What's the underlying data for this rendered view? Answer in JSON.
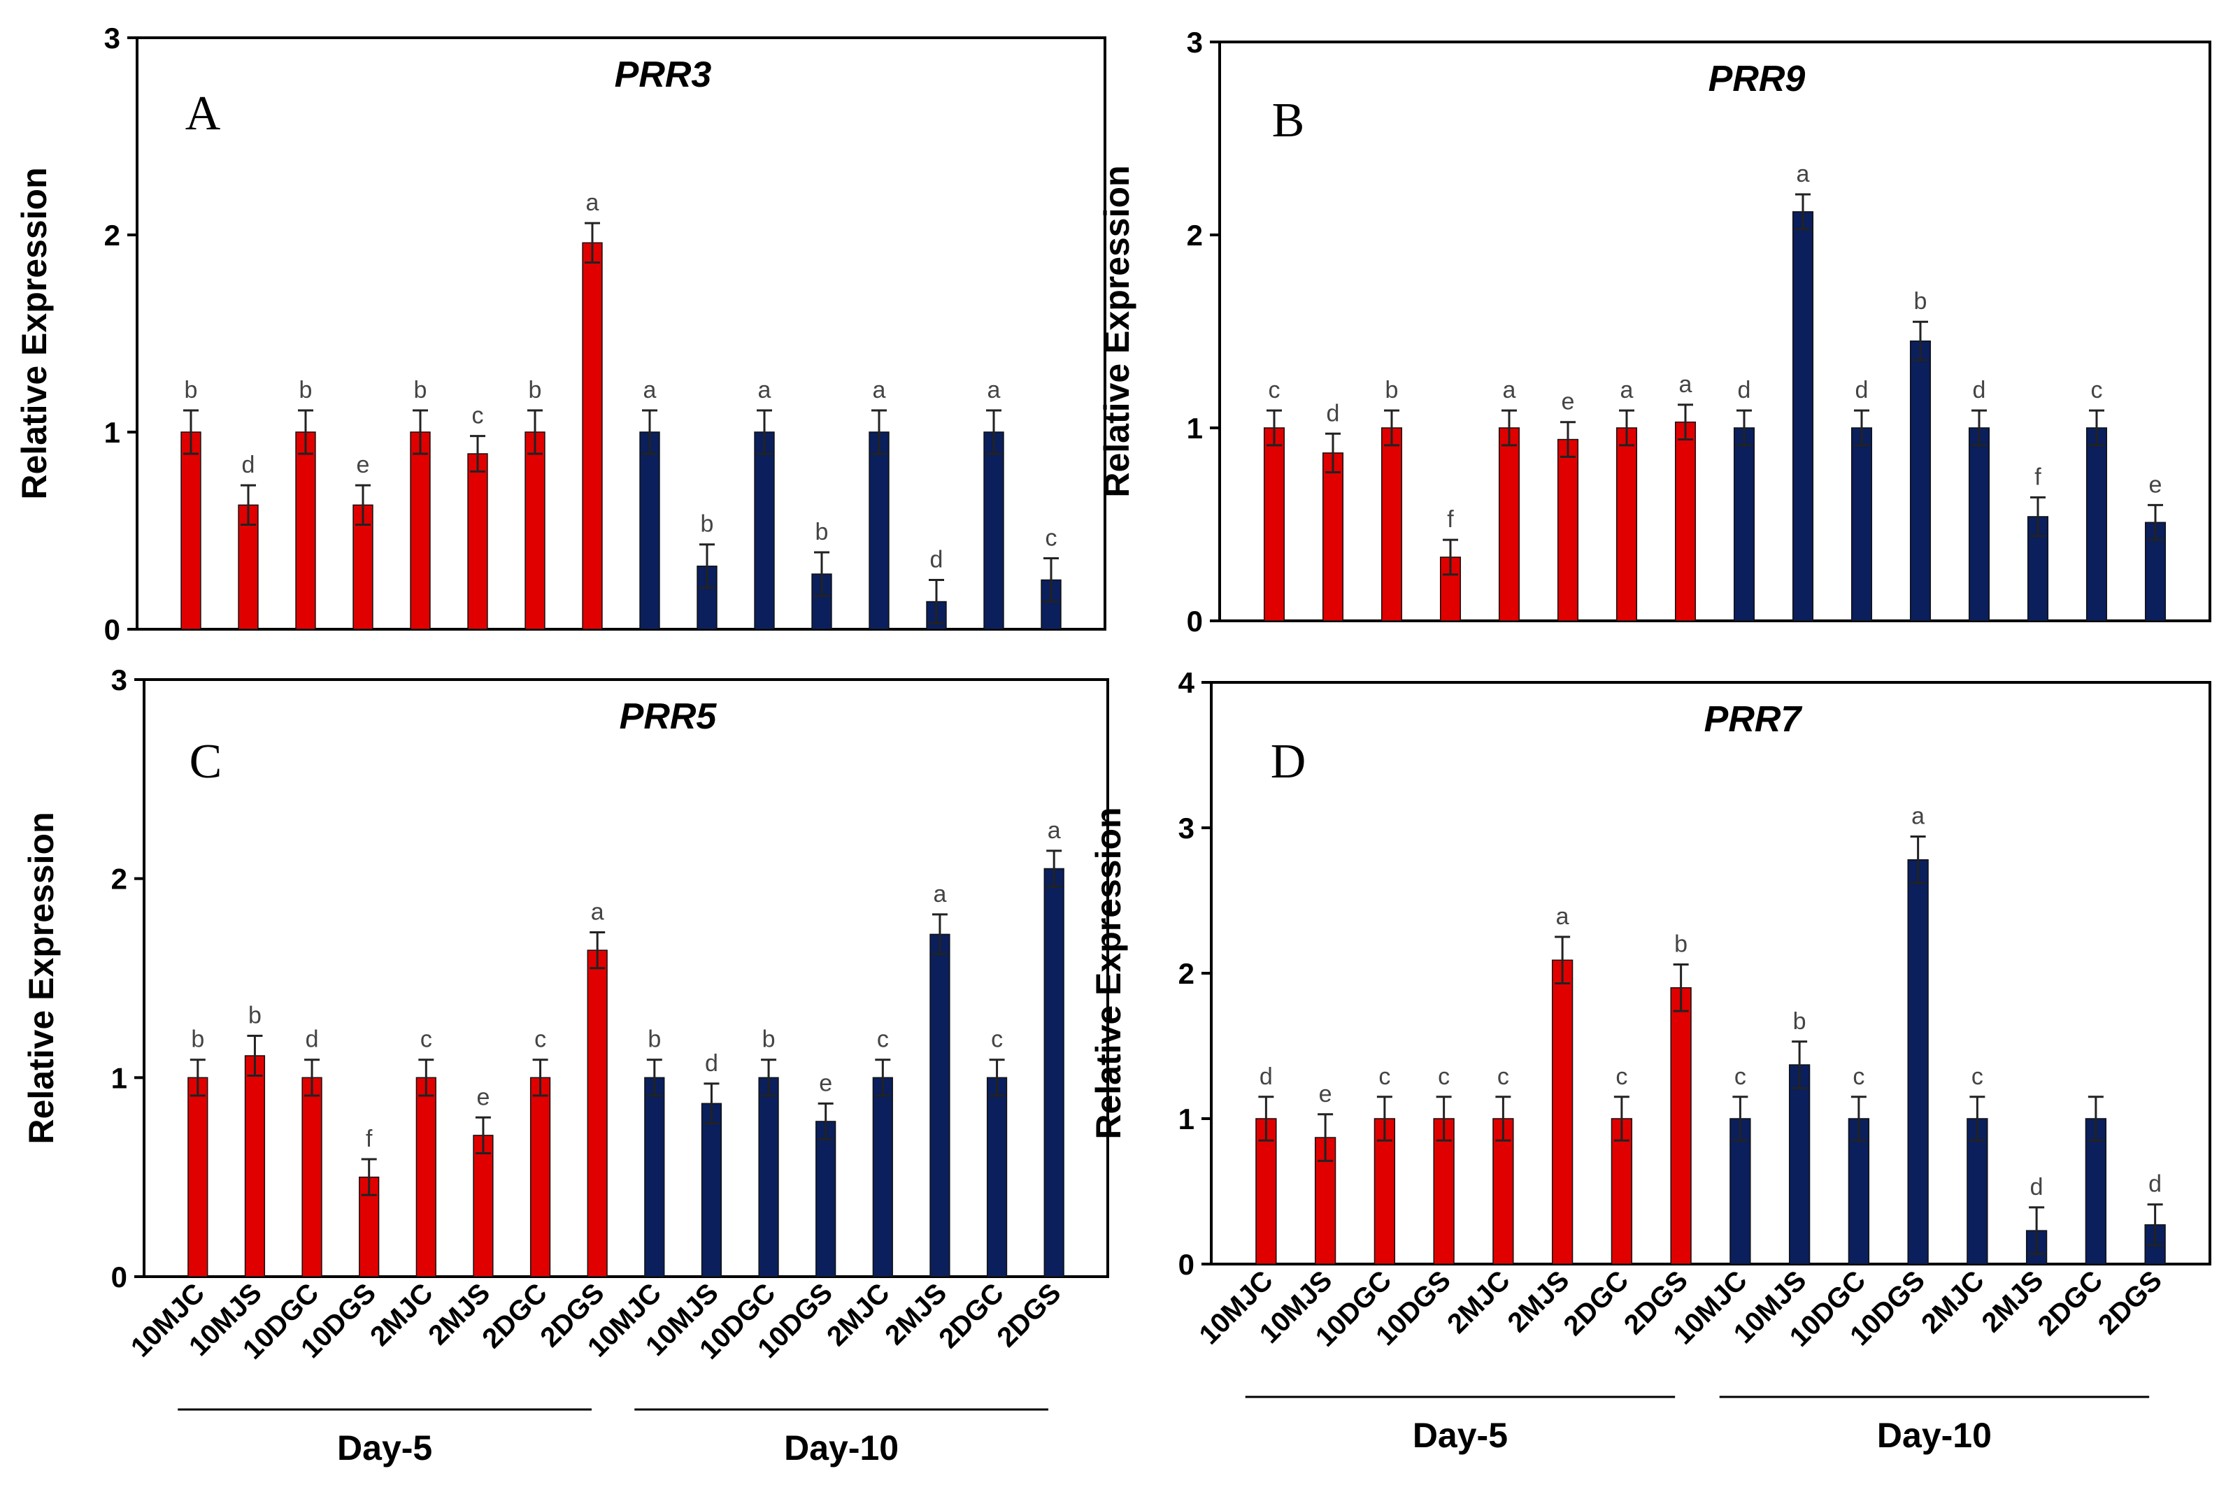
{
  "colors": {
    "day5": "#e00000",
    "day10": "#0a1f5c",
    "error": "#222222"
  },
  "chart_data": [
    {
      "panel": "A",
      "type": "bar",
      "title": "PRR3",
      "ylabel": "Relative Expression",
      "ylim": [
        0,
        3
      ],
      "yticks": [
        0,
        1,
        2,
        3
      ],
      "categories": [
        "10MJC",
        "10MJS",
        "10DGC",
        "10DGS",
        "2MJC",
        "2MJS",
        "2DGC",
        "2DGS",
        "10MJC",
        "10MJS",
        "10DGC",
        "10DGS",
        "2MJC",
        "2MJS",
        "2DGC",
        "2DGS"
      ],
      "groups": [
        "Day-5",
        "Day-5",
        "Day-5",
        "Day-5",
        "Day-5",
        "Day-5",
        "Day-5",
        "Day-5",
        "Day-10",
        "Day-10",
        "Day-10",
        "Day-10",
        "Day-10",
        "Day-10",
        "Day-10",
        "Day-10"
      ],
      "values": [
        1.0,
        0.63,
        1.0,
        0.63,
        1.0,
        0.89,
        1.0,
        1.96,
        1.0,
        0.32,
        1.0,
        0.28,
        1.0,
        0.14,
        1.0,
        0.25
      ],
      "errors": [
        0.11,
        0.1,
        0.11,
        0.1,
        0.11,
        0.09,
        0.11,
        0.1,
        0.11,
        0.11,
        0.11,
        0.11,
        0.11,
        0.11,
        0.11,
        0.11
      ],
      "significance": [
        "b",
        "d",
        "b",
        "e",
        "b",
        "c",
        "b",
        "a",
        "a",
        "b",
        "a",
        "b",
        "a",
        "d",
        "a",
        "c"
      ],
      "show_xticks": false,
      "show_groups": false
    },
    {
      "panel": "B",
      "type": "bar",
      "title": "PRR9",
      "ylabel": "Relative Expression",
      "ylim": [
        0,
        3
      ],
      "yticks": [
        0,
        1,
        2,
        3
      ],
      "categories": [
        "10MJC",
        "10MJS",
        "10DGC",
        "10DGS",
        "2MJC",
        "2MJS",
        "2DGC",
        "2DGS",
        "10MJC",
        "10MJS",
        "10DGC",
        "10DGS",
        "2MJC",
        "2MJS",
        "2DGC",
        "2DGS"
      ],
      "groups": [
        "Day-5",
        "Day-5",
        "Day-5",
        "Day-5",
        "Day-5",
        "Day-5",
        "Day-5",
        "Day-5",
        "Day-10",
        "Day-10",
        "Day-10",
        "Day-10",
        "Day-10",
        "Day-10",
        "Day-10",
        "Day-10"
      ],
      "values": [
        1.0,
        0.87,
        1.0,
        0.33,
        1.0,
        0.94,
        1.0,
        1.03,
        1.0,
        2.12,
        1.0,
        1.45,
        1.0,
        0.54,
        1.0,
        0.51
      ],
      "errors": [
        0.09,
        0.1,
        0.09,
        0.09,
        0.09,
        0.09,
        0.09,
        0.09,
        0.09,
        0.09,
        0.09,
        0.1,
        0.09,
        0.1,
        0.09,
        0.09
      ],
      "significance": [
        "c",
        "d",
        "b",
        "f",
        "a",
        "e",
        "a",
        "a",
        "d",
        "a",
        "d",
        "b",
        "d",
        "f",
        "c",
        "e"
      ],
      "show_xticks": false,
      "show_groups": false
    },
    {
      "panel": "C",
      "type": "bar",
      "title": "PRR5",
      "ylabel": "Relative Expression",
      "ylim": [
        0,
        3
      ],
      "yticks": [
        0,
        1,
        2,
        3
      ],
      "categories": [
        "10MJC",
        "10MJS",
        "10DGC",
        "10DGS",
        "2MJC",
        "2MJS",
        "2DGC",
        "2DGS",
        "10MJC",
        "10MJS",
        "10DGC",
        "10DGS",
        "2MJC",
        "2MJS",
        "2DGC",
        "2DGS"
      ],
      "groups": [
        "Day-5",
        "Day-5",
        "Day-5",
        "Day-5",
        "Day-5",
        "Day-5",
        "Day-5",
        "Day-5",
        "Day-10",
        "Day-10",
        "Day-10",
        "Day-10",
        "Day-10",
        "Day-10",
        "Day-10",
        "Day-10"
      ],
      "values": [
        1.0,
        1.11,
        1.0,
        0.5,
        1.0,
        0.71,
        1.0,
        1.64,
        1.0,
        0.87,
        1.0,
        0.78,
        1.0,
        1.72,
        1.0,
        2.05
      ],
      "errors": [
        0.09,
        0.1,
        0.09,
        0.09,
        0.09,
        0.09,
        0.09,
        0.09,
        0.09,
        0.1,
        0.09,
        0.09,
        0.09,
        0.1,
        0.09,
        0.09
      ],
      "significance": [
        "b",
        "b",
        "d",
        "f",
        "c",
        "e",
        "c",
        "a",
        "b",
        "d",
        "b",
        "e",
        "c",
        "a",
        "c",
        "a"
      ],
      "show_xticks": true,
      "show_groups": true
    },
    {
      "panel": "D",
      "type": "bar",
      "title": "PRR7",
      "ylabel": "Relative Expression",
      "ylim": [
        0,
        4
      ],
      "yticks": [
        0,
        1,
        2,
        3,
        4
      ],
      "categories": [
        "10MJC",
        "10MJS",
        "10DGC",
        "10DGS",
        "2MJC",
        "2MJS",
        "2DGC",
        "2DGS",
        "10MJC",
        "10MJS",
        "10DGC",
        "10DGS",
        "2MJC",
        "2MJS",
        "2DGC",
        "2DGS"
      ],
      "groups": [
        "Day-5",
        "Day-5",
        "Day-5",
        "Day-5",
        "Day-5",
        "Day-5",
        "Day-5",
        "Day-5",
        "Day-10",
        "Day-10",
        "Day-10",
        "Day-10",
        "Day-10",
        "Day-10",
        "Day-10",
        "Day-10"
      ],
      "values": [
        1.0,
        0.87,
        1.0,
        1.0,
        1.0,
        2.09,
        1.0,
        1.9,
        1.0,
        1.37,
        1.0,
        2.78,
        1.0,
        0.23,
        1.0,
        0.27
      ],
      "errors": [
        0.15,
        0.16,
        0.15,
        0.15,
        0.15,
        0.16,
        0.15,
        0.16,
        0.15,
        0.16,
        0.15,
        0.16,
        0.15,
        0.16,
        0.15,
        0.14
      ],
      "significance": [
        "d",
        "e",
        "c",
        "c",
        "c",
        "a",
        "c",
        "b",
        "c",
        "b",
        "c",
        "a",
        "c",
        "d",
        "",
        "d"
      ],
      "show_xticks": true,
      "show_groups": true
    }
  ]
}
